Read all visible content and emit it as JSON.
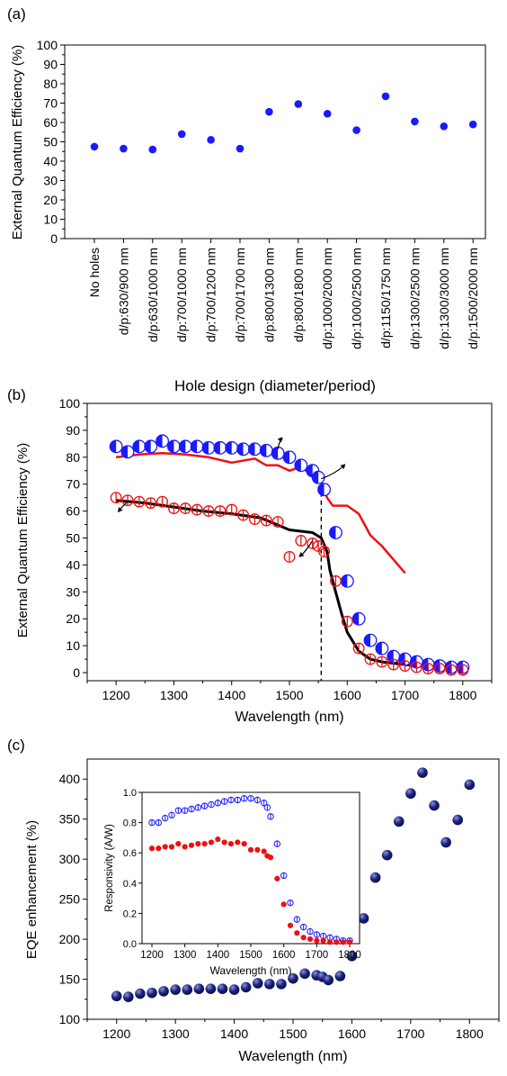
{
  "panels": {
    "a": {
      "label": "(a)",
      "chart_data": {
        "type": "scatter",
        "categories": [
          "No holes",
          "d/p:630/900 nm",
          "d/p:630/1000 nm",
          "d/p:700/1000 nm",
          "d/p:700/1200 nm",
          "d/p:700/1700 nm",
          "d/p:800/1300 nm",
          "d/p:800/1800 nm",
          "d/p:1000/2000 nm",
          "d/p:1000/2500 nm",
          "d/p:1150/1750 nm",
          "d/p:1300/2500 nm",
          "d/p:1300/3000 nm",
          "d/p:1500/2000 nm"
        ],
        "values": [
          47.5,
          46.5,
          46,
          54,
          51,
          46.5,
          65.5,
          69.5,
          64.5,
          56,
          73.5,
          60.5,
          58,
          59
        ],
        "xlabel": "Hole design (diameter/period)",
        "ylabel": "External Quantum Efficiency (%)",
        "ylim": [
          0,
          100
        ],
        "yticks": [
          0,
          10,
          20,
          30,
          40,
          50,
          60,
          70,
          80,
          90,
          100
        ],
        "color": "#1a1aff"
      }
    },
    "b": {
      "label": "(b)",
      "chart_data": {
        "type": "line",
        "xlabel": "Wavelength (nm)",
        "ylabel": "External Quantum Efficiency (%)",
        "xlim": [
          1150,
          1850
        ],
        "ylim": [
          -3,
          100
        ],
        "xticks": [
          1200,
          1300,
          1400,
          1500,
          1600,
          1700,
          1800
        ],
        "yticks": [
          0,
          10,
          20,
          30,
          40,
          50,
          60,
          70,
          80,
          90,
          100
        ],
        "dashed_x": 1555,
        "series": [
          {
            "kind": "markers",
            "color": "#1a1aff",
            "x": [
              1200,
              1220,
              1240,
              1260,
              1280,
              1300,
              1320,
              1340,
              1360,
              1380,
              1400,
              1420,
              1440,
              1460,
              1480,
              1500,
              1520,
              1540,
              1550,
              1560,
              1580,
              1600,
              1620,
              1640,
              1660,
              1680,
              1700,
              1720,
              1740,
              1760,
              1780,
              1800
            ],
            "y": [
              84,
              82,
              84,
              84,
              86,
              84,
              84,
              84,
              83.5,
              83.5,
              83.5,
              83,
              83,
              82.5,
              81.5,
              80,
              77,
              75,
              72.5,
              68,
              52,
              34,
              20,
              12,
              9,
              6,
              5,
              4,
              3,
              2.5,
              2,
              2
            ]
          },
          {
            "kind": "line",
            "color": "#ee1111",
            "x": [
              1200,
              1240,
              1280,
              1320,
              1360,
              1400,
              1440,
              1460,
              1480,
              1500,
              1520,
              1540,
              1555,
              1565,
              1575,
              1600,
              1620,
              1630,
              1640,
              1660,
              1680,
              1700
            ],
            "y": [
              80,
              81,
              81.5,
              81,
              80,
              78,
              79.5,
              77,
              77,
              75,
              76.5,
              73,
              71,
              65,
              62,
              62,
              59,
              55,
              51,
              47,
              42,
              37
            ]
          },
          {
            "kind": "markers",
            "color": "#ee1111",
            "x": [
              1200,
              1220,
              1240,
              1260,
              1280,
              1300,
              1320,
              1340,
              1360,
              1380,
              1400,
              1420,
              1440,
              1460,
              1480,
              1500,
              1520,
              1540,
              1550,
              1560,
              1580,
              1600,
              1620,
              1640,
              1660,
              1680,
              1700,
              1720,
              1740,
              1760,
              1780,
              1800
            ],
            "y": [
              65,
              64,
              63.5,
              63,
              63.5,
              61,
              61,
              60.5,
              60,
              60,
              60.5,
              58.5,
              57,
              56.5,
              56,
              43,
              49,
              48,
              47,
              45,
              34,
              19,
              9,
              5,
              4,
              3,
              2.5,
              2,
              1.5,
              1.5,
              1,
              1
            ]
          },
          {
            "kind": "line",
            "color": "#000000",
            "x": [
              1200,
              1250,
              1300,
              1350,
              1400,
              1450,
              1500,
              1520,
              1540,
              1555,
              1565,
              1570,
              1580,
              1590,
              1600,
              1620,
              1640,
              1660,
              1700,
              1750,
              1800
            ],
            "y": [
              64,
              63,
              61.5,
              60,
              59,
              57.5,
              53,
              52.5,
              52,
              50,
              45,
              38,
              30,
              22,
              15,
              8,
              5,
              4,
              3,
              2,
              1.5
            ]
          }
        ]
      }
    },
    "c": {
      "label": "(c)",
      "chart_data": {
        "type": "scatter",
        "xlabel": "Wavelength (nm)",
        "ylabel": "EQE enhancement (%)",
        "xlim": [
          1150,
          1850
        ],
        "ylim": [
          100,
          425
        ],
        "xticks": [
          1200,
          1300,
          1400,
          1500,
          1600,
          1700,
          1800
        ],
        "yticks": [
          100,
          150,
          200,
          250,
          300,
          350,
          400
        ],
        "color": "#1a237e",
        "x": [
          1200,
          1220,
          1240,
          1260,
          1280,
          1300,
          1320,
          1340,
          1360,
          1380,
          1400,
          1420,
          1440,
          1460,
          1480,
          1500,
          1520,
          1540,
          1550,
          1560,
          1580,
          1600,
          1620,
          1640,
          1660,
          1680,
          1700,
          1720,
          1740,
          1760,
          1780,
          1800
        ],
        "y": [
          129,
          128,
          132,
          133,
          135,
          137,
          137,
          138,
          138,
          138,
          137,
          140,
          145,
          144,
          144,
          151,
          157,
          155,
          153,
          149,
          154,
          179,
          226,
          277,
          305,
          347,
          382,
          408,
          367,
          321,
          349,
          393
        ],
        "inset": {
          "xlabel": "Wavelength (nm)",
          "ylabel": "Responsivity (A/W)",
          "xlim": [
            1170,
            1830
          ],
          "ylim": [
            0,
            1
          ],
          "xticks": [
            1200,
            1300,
            1400,
            1500,
            1600,
            1700,
            1800
          ],
          "yticks": [
            "0.0",
            "0.2",
            "0.4",
            "0.6",
            "0.8",
            "1.0"
          ],
          "series": [
            {
              "color": "#1a1aff",
              "open": true,
              "x": [
                1200,
                1220,
                1240,
                1260,
                1280,
                1300,
                1320,
                1340,
                1360,
                1380,
                1400,
                1420,
                1440,
                1460,
                1480,
                1500,
                1520,
                1540,
                1550,
                1560,
                1580,
                1600,
                1620,
                1640,
                1660,
                1680,
                1700,
                1720,
                1740,
                1760,
                1780,
                1800
              ],
              "y": [
                0.8,
                0.8,
                0.83,
                0.85,
                0.88,
                0.88,
                0.89,
                0.9,
                0.91,
                0.92,
                0.93,
                0.94,
                0.95,
                0.95,
                0.96,
                0.96,
                0.95,
                0.93,
                0.9,
                0.84,
                0.66,
                0.45,
                0.27,
                0.16,
                0.11,
                0.08,
                0.06,
                0.05,
                0.04,
                0.03,
                0.02,
                0.02
              ]
            },
            {
              "color": "#ee1111",
              "open": false,
              "x": [
                1200,
                1220,
                1240,
                1260,
                1280,
                1300,
                1320,
                1340,
                1360,
                1380,
                1400,
                1420,
                1440,
                1460,
                1480,
                1500,
                1520,
                1540,
                1550,
                1560,
                1580,
                1600,
                1620,
                1640,
                1660,
                1680,
                1700,
                1720,
                1740,
                1760,
                1780,
                1800
              ],
              "y": [
                0.63,
                0.63,
                0.64,
                0.64,
                0.66,
                0.64,
                0.65,
                0.66,
                0.66,
                0.67,
                0.69,
                0.67,
                0.66,
                0.67,
                0.66,
                0.62,
                0.62,
                0.61,
                0.58,
                0.57,
                0.43,
                0.26,
                0.12,
                0.07,
                0.04,
                0.03,
                0.02,
                0.02,
                0.01,
                0.01,
                0.01,
                0.01
              ]
            }
          ]
        }
      }
    }
  }
}
